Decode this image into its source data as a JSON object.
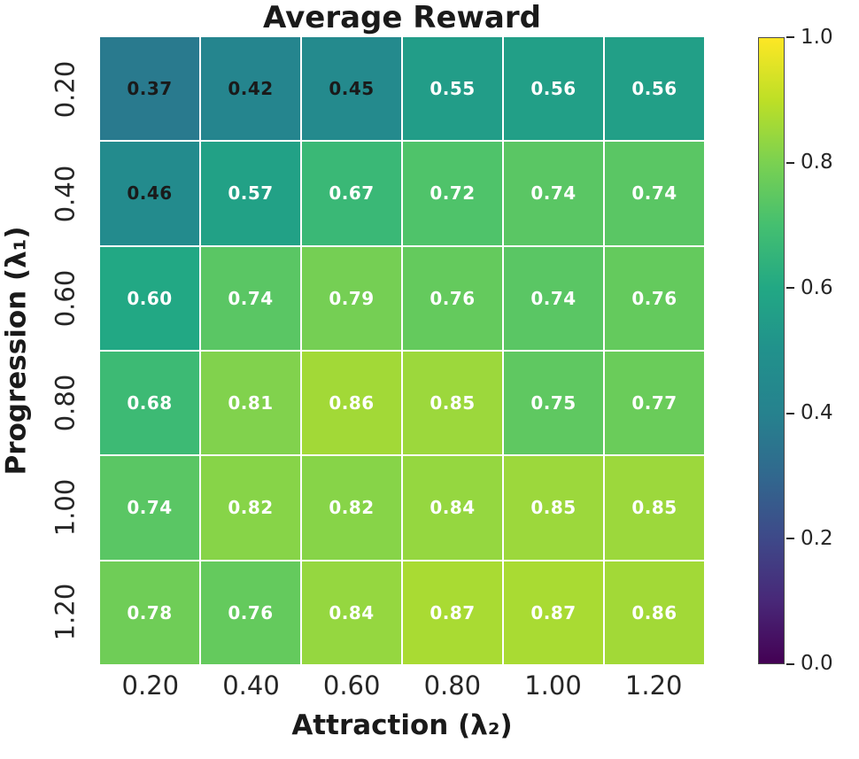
{
  "chart_data": {
    "type": "heatmap",
    "title": "Average Reward",
    "xlabel": "Attraction (λ₂)",
    "ylabel": "Progression (λ₁)",
    "x_ticklabels": [
      "0.20",
      "0.40",
      "0.60",
      "0.80",
      "1.00",
      "1.20"
    ],
    "y_ticklabels": [
      "0.20",
      "0.40",
      "0.60",
      "0.80",
      "1.00",
      "1.20"
    ],
    "values": [
      [
        0.37,
        0.42,
        0.45,
        0.55,
        0.56,
        0.56
      ],
      [
        0.46,
        0.57,
        0.67,
        0.72,
        0.74,
        0.74
      ],
      [
        0.6,
        0.74,
        0.79,
        0.76,
        0.74,
        0.76
      ],
      [
        0.68,
        0.81,
        0.86,
        0.85,
        0.75,
        0.77
      ],
      [
        0.74,
        0.82,
        0.82,
        0.84,
        0.85,
        0.85
      ],
      [
        0.78,
        0.76,
        0.84,
        0.87,
        0.87,
        0.86
      ]
    ],
    "value_decimals": 2,
    "colormap": "viridis",
    "grid_lines": true,
    "colorbar": {
      "min": 0.0,
      "max": 1.0,
      "ticks_top_to_bottom": [
        "1.0",
        "0.8",
        "0.6",
        "0.4",
        "0.2",
        "0.0"
      ],
      "position": "right"
    },
    "annot_dark_text_below": 0.5,
    "colors": {
      "viridis_stops": [
        "#440154",
        "#482878",
        "#3e4989",
        "#31688e",
        "#26828e",
        "#21918c",
        "#22a884",
        "#44bf70",
        "#7ad151",
        "#bddf26",
        "#fde725"
      ],
      "annot_light": "#ffffff",
      "annot_dark": "#1a1a1a",
      "grid": "#ffffff",
      "tick_label": "#262626",
      "title": "#1a1a1a"
    }
  }
}
